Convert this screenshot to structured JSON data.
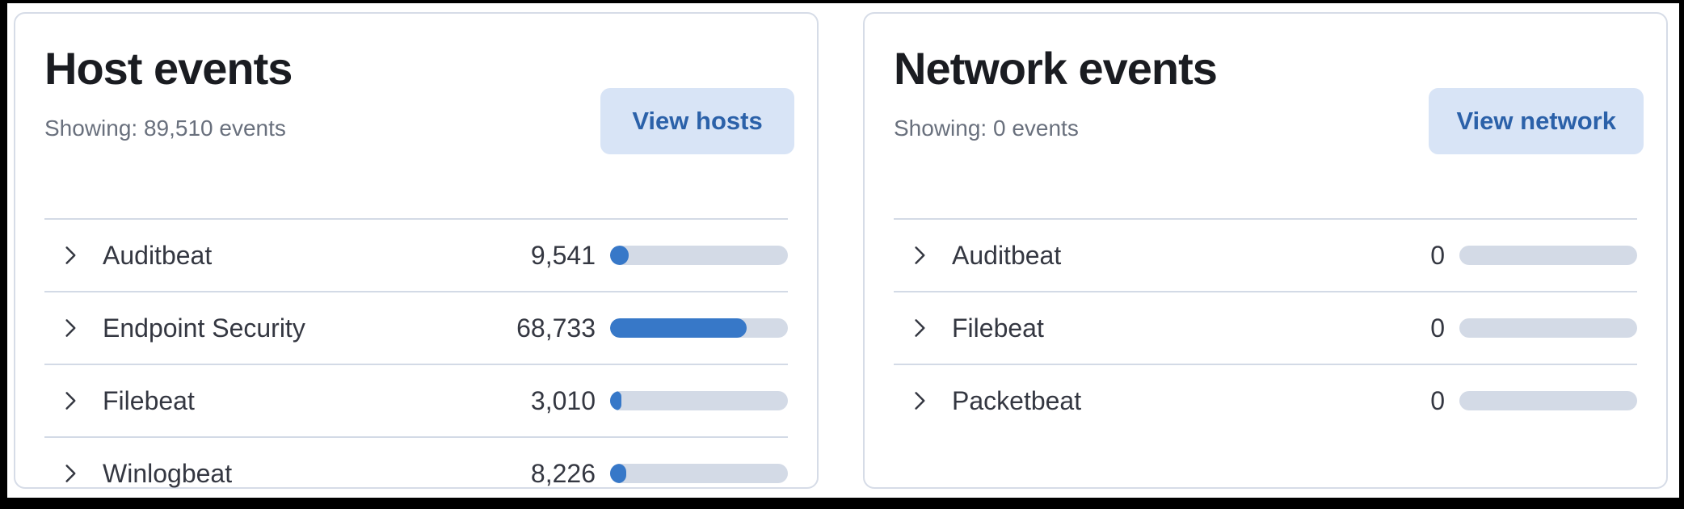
{
  "panels": [
    {
      "name": "host-events",
      "title": "Host events",
      "showing_label": "Showing: 89,510 events",
      "total_events": 89510,
      "button_label": "View hosts",
      "rows": [
        {
          "label": "Auditbeat",
          "value": "9,541",
          "fraction": 0.1066
        },
        {
          "label": "Endpoint Security",
          "value": "68,733",
          "fraction": 0.7679
        },
        {
          "label": "Filebeat",
          "value": "3,010",
          "fraction": 0.0336
        },
        {
          "label": "Winlogbeat",
          "value": "8,226",
          "fraction": 0.0919
        }
      ]
    },
    {
      "name": "network-events",
      "title": "Network events",
      "showing_label": "Showing: 0 events",
      "total_events": 0,
      "button_label": "View network",
      "rows": [
        {
          "label": "Auditbeat",
          "value": "0",
          "fraction": 0
        },
        {
          "label": "Filebeat",
          "value": "0",
          "fraction": 0
        },
        {
          "label": "Packetbeat",
          "value": "0",
          "fraction": 0
        }
      ]
    }
  ],
  "icons": {
    "row_expand": "chevron-right"
  },
  "colors": {
    "bar_fill": "#3778C8",
    "bar_track": "#D3DAE6",
    "button_bg": "#D8E4F6",
    "button_text": "#2B61A9",
    "title_text": "#1A1C21",
    "muted_text": "#69707D",
    "row_text": "#343741",
    "separator": "#D3DAE6",
    "panel_border": "#D6DCE7",
    "frame_border": "#000000"
  }
}
